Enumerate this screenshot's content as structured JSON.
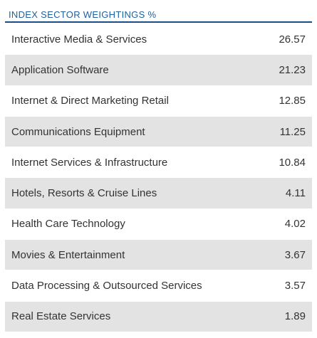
{
  "title": "INDEX SECTOR WEIGHTINGS %",
  "rows": [
    {
      "sector": "Interactive Media & Services",
      "weight": "26.57"
    },
    {
      "sector": "Application Software",
      "weight": "21.23"
    },
    {
      "sector": "Internet & Direct Marketing Retail",
      "weight": "12.85"
    },
    {
      "sector": "Communications Equipment",
      "weight": "11.25"
    },
    {
      "sector": "Internet Services & Infrastructure",
      "weight": "10.84"
    },
    {
      "sector": "Hotels, Resorts & Cruise Lines",
      "weight": "4.11"
    },
    {
      "sector": "Health Care Technology",
      "weight": "4.02"
    },
    {
      "sector": "Movies & Entertainment",
      "weight": "3.67"
    },
    {
      "sector": "Data Processing & Outsourced Services",
      "weight": "3.57"
    },
    {
      "sector": "Real Estate Services",
      "weight": "1.89"
    }
  ],
  "colors": {
    "title": "#1e5f9c",
    "rule": "#1a4f86",
    "stripe": "#e3e3e3",
    "text": "#333333"
  }
}
